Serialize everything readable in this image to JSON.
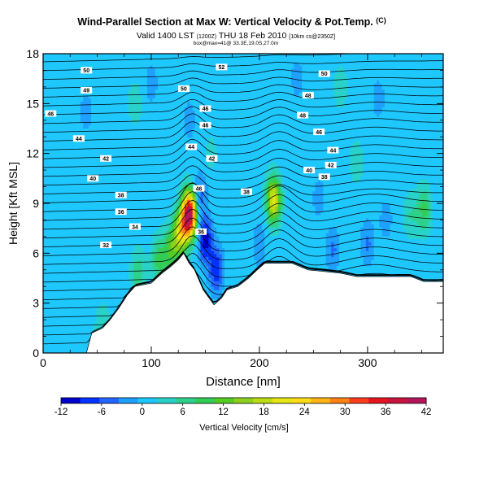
{
  "header": {
    "title": "Wind-Parallel Section at Max W: Vertical Velocity & Pot.Temp.",
    "copyright": "(C)",
    "valid_main": "Valid 1400 LST",
    "valid_utc": "(1200Z)",
    "valid_date": "THU 18 Feb 2010",
    "model_info": "[10km cs@2350Z]",
    "location_info": "box@max=41@ 33.3E,19.0S,27.0m"
  },
  "chart_data": {
    "type": "contour-section",
    "xlabel": "Distance [nm]",
    "ylabel": "Height [Kft MSL]",
    "xlim": [
      0,
      370
    ],
    "ylim": [
      0,
      18
    ],
    "xticks": [
      0,
      100,
      200,
      300
    ],
    "yticks": [
      0,
      3,
      6,
      9,
      12,
      15,
      18
    ],
    "colorbar": {
      "label": "Vertical Velocity [cm/s]",
      "ticks": [
        -12,
        -6,
        0,
        6,
        12,
        18,
        24,
        30,
        36,
        42
      ],
      "range": [
        -12,
        42
      ],
      "colors": [
        "#0000cc",
        "#0033ff",
        "#2266ff",
        "#1ea0ff",
        "#1ec8ff",
        "#28d2c8",
        "#2ed18c",
        "#33cc55",
        "#55cc22",
        "#8cd21e",
        "#bedc14",
        "#e6e614",
        "#ffdc14",
        "#ffb414",
        "#ff8214",
        "#ff3c1e",
        "#e6141e",
        "#c8143c",
        "#b4145a"
      ]
    },
    "terrain": [
      [
        0,
        0
      ],
      [
        40,
        0
      ],
      [
        45,
        1.2
      ],
      [
        55,
        1.5
      ],
      [
        62,
        2.0
      ],
      [
        70,
        2.7
      ],
      [
        78,
        3.5
      ],
      [
        85,
        4.0
      ],
      [
        100,
        4.2
      ],
      [
        110,
        4.8
      ],
      [
        118,
        5.2
      ],
      [
        125,
        5.6
      ],
      [
        130,
        6.0
      ],
      [
        135,
        5.4
      ],
      [
        140,
        5.0
      ],
      [
        148,
        3.8
      ],
      [
        158,
        2.9
      ],
      [
        165,
        3.3
      ],
      [
        170,
        3.8
      ],
      [
        180,
        4.0
      ],
      [
        190,
        4.5
      ],
      [
        198,
        5.0
      ],
      [
        205,
        5.4
      ],
      [
        230,
        5.4
      ],
      [
        245,
        5.0
      ],
      [
        260,
        4.9
      ],
      [
        275,
        4.8
      ],
      [
        290,
        4.6
      ],
      [
        340,
        4.6
      ],
      [
        352,
        4.3
      ],
      [
        370,
        4.3
      ]
    ],
    "w_features": [
      {
        "x": 135,
        "z": 8.3,
        "w": 42
      },
      {
        "x": 127,
        "z": 7.2,
        "w": 18
      },
      {
        "x": 118,
        "z": 6.2,
        "w": 10
      },
      {
        "x": 107,
        "z": 5.6,
        "w": 8
      },
      {
        "x": 88,
        "z": 4.8,
        "w": 6
      },
      {
        "x": 55,
        "z": 1.5,
        "w": 4
      },
      {
        "x": 150,
        "z": 6.8,
        "w": -12
      },
      {
        "x": 160,
        "z": 5.0,
        "w": -10
      },
      {
        "x": 145,
        "z": 9.5,
        "w": -6
      },
      {
        "x": 213,
        "z": 9.2,
        "w": 20
      },
      {
        "x": 200,
        "z": 6.5,
        "w": -4
      },
      {
        "x": 268,
        "z": 6.2,
        "w": -5
      },
      {
        "x": 300,
        "z": 6.6,
        "w": -5
      },
      {
        "x": 317,
        "z": 8.0,
        "w": -3
      },
      {
        "x": 340,
        "z": 8.3,
        "w": 4
      },
      {
        "x": 352,
        "z": 8.6,
        "w": 8
      },
      {
        "x": 40,
        "z": 14.5,
        "w": -3
      },
      {
        "x": 100,
        "z": 16.2,
        "w": -3
      },
      {
        "x": 135,
        "z": 14.0,
        "w": -3
      },
      {
        "x": 235,
        "z": 16.5,
        "w": -3
      },
      {
        "x": 310,
        "z": 15.3,
        "w": -3
      },
      {
        "x": 255,
        "z": 9.3,
        "w": -3
      },
      {
        "x": 85,
        "z": 15.0,
        "w": 3
      },
      {
        "x": 275,
        "z": 16.0,
        "w": 3
      },
      {
        "x": 155,
        "z": 12.0,
        "w": 2
      },
      {
        "x": 290,
        "z": 11.5,
        "w": 3
      }
    ],
    "isentrope_labels": [
      {
        "text": "52",
        "x": 165,
        "z": 17.2
      },
      {
        "text": "50",
        "x": 40,
        "z": 17.0
      },
      {
        "text": "50",
        "x": 260,
        "z": 16.8
      },
      {
        "text": "50",
        "x": 130,
        "z": 15.9
      },
      {
        "text": "49",
        "x": 40,
        "z": 15.8
      },
      {
        "text": "48",
        "x": 245,
        "z": 15.5
      },
      {
        "text": "46",
        "x": 150,
        "z": 14.7
      },
      {
        "text": "46",
        "x": 7,
        "z": 14.4
      },
      {
        "text": "48",
        "x": 240,
        "z": 14.3
      },
      {
        "text": "46",
        "x": 150,
        "z": 13.7
      },
      {
        "text": "46",
        "x": 255,
        "z": 13.3
      },
      {
        "text": "44",
        "x": 33,
        "z": 12.9
      },
      {
        "text": "44",
        "x": 137,
        "z": 12.4
      },
      {
        "text": "44",
        "x": 268,
        "z": 12.2
      },
      {
        "text": "42",
        "x": 58,
        "z": 11.7
      },
      {
        "text": "42",
        "x": 156,
        "z": 11.7
      },
      {
        "text": "42",
        "x": 266,
        "z": 11.3
      },
      {
        "text": "40",
        "x": 246,
        "z": 11.0
      },
      {
        "text": "40",
        "x": 46,
        "z": 10.5
      },
      {
        "text": "38",
        "x": 260,
        "z": 10.6
      },
      {
        "text": "38",
        "x": 72,
        "z": 9.5
      },
      {
        "text": "38",
        "x": 188,
        "z": 9.7
      },
      {
        "text": "36",
        "x": 72,
        "z": 8.5
      },
      {
        "text": "34",
        "x": 85,
        "z": 7.6
      },
      {
        "text": "32",
        "x": 58,
        "z": 6.5
      },
      {
        "text": "46",
        "x": 144,
        "z": 9.9
      },
      {
        "text": "36",
        "x": 146,
        "z": 7.3
      }
    ]
  }
}
